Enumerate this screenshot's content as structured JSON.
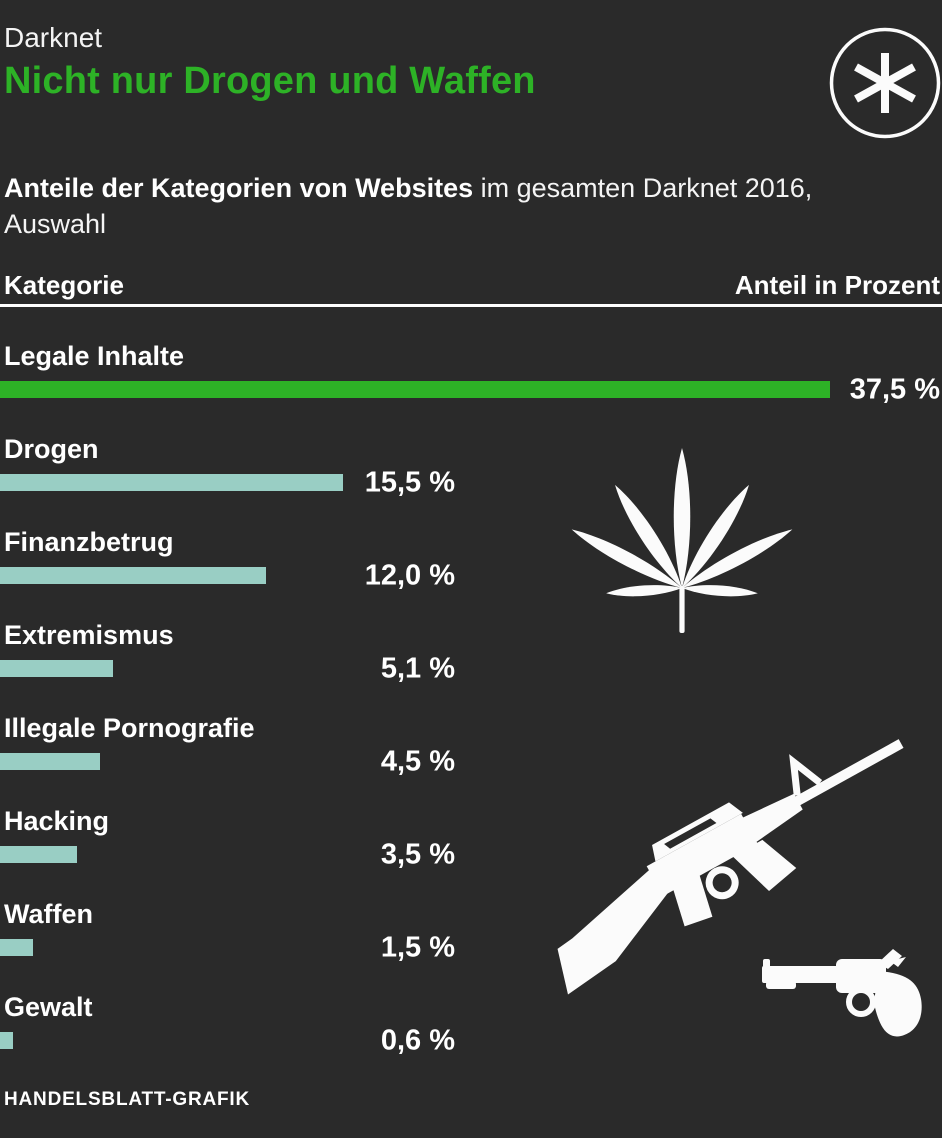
{
  "header": {
    "kicker": "Darknet",
    "title": "Nicht nur Drogen und Waffen"
  },
  "subtitle": {
    "bold": "Anteile der Kategorien von Websites",
    "regular": " im gesamten Darknet 2016, Auswahl"
  },
  "table": {
    "col_left": "Kategorie",
    "col_right": "Anteil in Prozent"
  },
  "rows": [
    {
      "label": "Legale Inhalte",
      "value": 37.5,
      "value_label": "37,5 %",
      "highlight": true
    },
    {
      "label": "Drogen",
      "value": 15.5,
      "value_label": "15,5 %",
      "highlight": false
    },
    {
      "label": "Finanzbetrug",
      "value": 12.0,
      "value_label": "12,0 %",
      "highlight": false
    },
    {
      "label": "Extremismus",
      "value": 5.1,
      "value_label": "5,1 %",
      "highlight": false
    },
    {
      "label": "Illegale Pornografie",
      "value": 4.5,
      "value_label": "4,5 %",
      "highlight": false
    },
    {
      "label": "Hacking",
      "value": 3.5,
      "value_label": "3,5 %",
      "highlight": false
    },
    {
      "label": "Waffen",
      "value": 1.5,
      "value_label": "1,5 %",
      "highlight": false
    },
    {
      "label": "Gewalt",
      "value": 0.6,
      "value_label": "0,6 %",
      "highlight": false
    }
  ],
  "footer": {
    "source": "HANDELSBLATT-GRAFIK"
  },
  "icons": {
    "logo": "asterisk-in-circle",
    "drugs": "cannabis-leaf",
    "rifle": "assault-rifle",
    "handgun": "revolver"
  },
  "colors": {
    "background": "#2a2a2a",
    "accent_green": "#2db226",
    "bar_teal": "#99cec4",
    "text": "#ffffff"
  },
  "chart_data": {
    "type": "bar",
    "orientation": "horizontal",
    "title": "Nicht nur Drogen und Waffen",
    "kicker": "Darknet",
    "subtitle": "Anteile der Kategorien von Websites im gesamten Darknet 2016, Auswahl",
    "xlabel": "Anteil in Prozent",
    "ylabel": "Kategorie",
    "categories": [
      "Legale Inhalte",
      "Drogen",
      "Finanzbetrug",
      "Extremismus",
      "Illegale Pornografie",
      "Hacking",
      "Waffen",
      "Gewalt"
    ],
    "values": [
      37.5,
      15.5,
      12.0,
      5.1,
      4.5,
      3.5,
      1.5,
      0.6
    ],
    "value_labels": [
      "37,5 %",
      "15,5 %",
      "12,0 %",
      "5,1 %",
      "4,5 %",
      "3,5 %",
      "1,5 %",
      "0,6 %"
    ],
    "unit": "percent",
    "xlim": [
      0,
      37.5
    ],
    "grid": false,
    "legend": false,
    "highlight_category": "Legale Inhalte",
    "source": "HANDELSBLATT-GRAFIK"
  }
}
